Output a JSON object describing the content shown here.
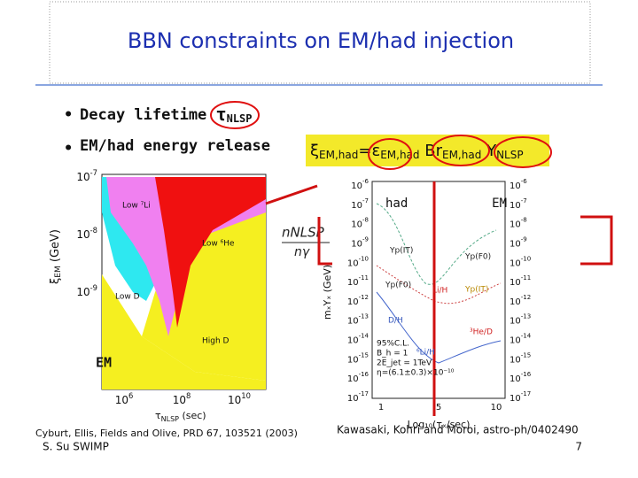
{
  "title": "BBN constraints on EM/had injection",
  "bullets": [
    {
      "text": "Decay lifetime",
      "sym": "τ",
      "sub": "NLSP"
    },
    {
      "text": "EM/had energy release"
    }
  ],
  "formula": [
    {
      "main": "ξ",
      "sub": "EM,had"
    },
    {
      "main": "=ε",
      "sub": "EM,had"
    },
    {
      "main": "Br",
      "sub": "EM,had"
    },
    {
      "main": "Y",
      "sub": "NLSP"
    }
  ],
  "ratio": {
    "num": "nNLSP",
    "den": "nγ"
  },
  "left_plot": {
    "y_label": {
      "main": "ξ",
      "sub": "EM",
      "unit": "(GeV)"
    },
    "y_ticks": [
      {
        "base": "10",
        "exp": "-7"
      },
      {
        "base": "10",
        "exp": "-8"
      },
      {
        "base": "10",
        "exp": "-9"
      }
    ],
    "x_ticks": [
      {
        "base": "10",
        "exp": "6"
      },
      {
        "base": "10",
        "exp": "8"
      },
      {
        "base": "10",
        "exp": "10"
      }
    ],
    "x_label": {
      "main": "τ",
      "sub": "NLSP",
      "unit": "(sec)"
    },
    "regions": [
      "Low ⁷Li",
      "Low ⁶He",
      "Low D",
      "High D"
    ],
    "tag": "EM"
  },
  "right_plot": {
    "tags": [
      "had",
      "EM"
    ],
    "y_ticks": [
      {
        "base": "10",
        "exp": "-6"
      },
      {
        "base": "10",
        "exp": "-7"
      },
      {
        "base": "10",
        "exp": "-8"
      },
      {
        "base": "10",
        "exp": "-9"
      },
      {
        "base": "10",
        "exp": "-10"
      },
      {
        "base": "10",
        "exp": "-11"
      },
      {
        "base": "10",
        "exp": "-12"
      },
      {
        "base": "10",
        "exp": "-13"
      },
      {
        "base": "10",
        "exp": "-14"
      },
      {
        "base": "10",
        "exp": "-15"
      },
      {
        "base": "10",
        "exp": "-16"
      },
      {
        "base": "10",
        "exp": "-17"
      }
    ],
    "x_ticks": [
      "1",
      "5",
      "10"
    ],
    "x_label": "Log₁₀(τₓ/sec)",
    "y_label": "mₓYₓ (GeV)",
    "curves": [
      "Yp(IT)",
      "Yp(F0)",
      "Li/H",
      "D/H",
      "⁶Li/H",
      "Yp(F0)",
      "Yp(IT)",
      "³He/D"
    ],
    "legend": [
      "95%C.L.",
      "B_h = 1",
      "2E_jet = 1TeV",
      "η=(6.1±0.3)×10⁻¹⁰"
    ]
  },
  "citations": [
    "Cyburt, Ellis, Fields and Olive, PRD 67, 103521 (2003)",
    "Kawasaki, Kohri and Moroi, astro-ph/0402490"
  ],
  "footer": {
    "author": "S. Su  SWIMP",
    "page": "7"
  }
}
